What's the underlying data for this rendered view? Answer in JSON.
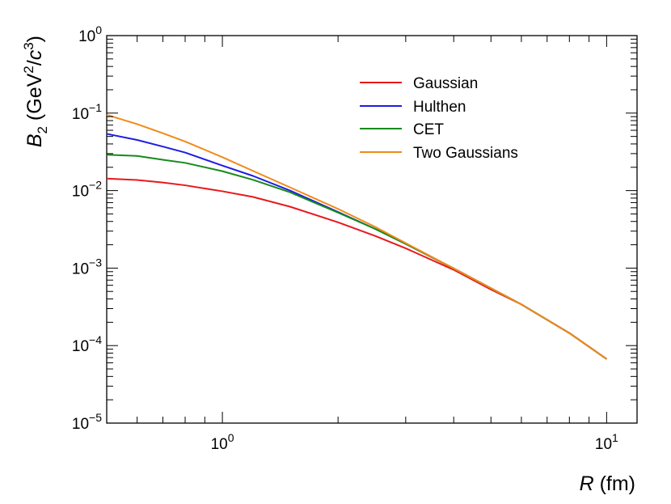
{
  "chart_data": {
    "type": "line",
    "scale": {
      "x": "log",
      "y": "log"
    },
    "xlim": [
      0.5,
      12.0
    ],
    "ylim": [
      1e-05,
      1.0
    ],
    "xlabel": {
      "var": "R",
      "unit": " (fm)"
    },
    "ylabel": {
      "var": "B",
      "sub": "2",
      "open": " (GeV",
      "sup1": "2",
      "mid": "/",
      "cvar": "c",
      "sup2": "3",
      "close": ")"
    },
    "x_ticks": [
      {
        "value": 1,
        "base": "10",
        "exp": "0"
      },
      {
        "value": 10,
        "base": "10",
        "exp": "1"
      }
    ],
    "y_ticks": [
      {
        "value": 1.0,
        "base": "10",
        "exp": "0"
      },
      {
        "value": 0.1,
        "base": "10",
        "exp": "−1"
      },
      {
        "value": 0.01,
        "base": "10",
        "exp": "−2"
      },
      {
        "value": 0.001,
        "base": "10",
        "exp": "−3"
      },
      {
        "value": 0.0001,
        "base": "10",
        "exp": "−4"
      },
      {
        "value": 1e-05,
        "base": "10",
        "exp": "−5"
      }
    ],
    "legend_position": "top-right",
    "series": [
      {
        "name": "Gaussian",
        "color": "#e8191c",
        "points": [
          [
            0.5,
            0.0143
          ],
          [
            0.6,
            0.0137
          ],
          [
            0.7,
            0.0127
          ],
          [
            0.8,
            0.0117
          ],
          [
            1.0,
            0.0098
          ],
          [
            1.2,
            0.0083
          ],
          [
            1.5,
            0.0062
          ],
          [
            2.0,
            0.0039
          ],
          [
            2.5,
            0.0026
          ],
          [
            3.0,
            0.0018
          ],
          [
            4.0,
            0.00095
          ],
          [
            5.0,
            0.00053
          ],
          [
            6.0,
            0.00034
          ],
          [
            8.0,
            0.000145
          ],
          [
            10.0,
            6.7e-05
          ]
        ]
      },
      {
        "name": "Hulthen",
        "color": "#1d1de3",
        "points": [
          [
            0.5,
            0.054
          ],
          [
            0.6,
            0.045
          ],
          [
            0.7,
            0.037
          ],
          [
            0.8,
            0.031
          ],
          [
            1.0,
            0.021
          ],
          [
            1.2,
            0.0155
          ],
          [
            1.5,
            0.01
          ],
          [
            2.0,
            0.0053
          ],
          [
            2.5,
            0.0032
          ],
          [
            3.0,
            0.00205
          ],
          [
            4.0,
            0.00099
          ],
          [
            5.0,
            0.00055
          ],
          [
            6.0,
            0.00034
          ],
          [
            8.0,
            0.000145
          ],
          [
            10.0,
            6.7e-05
          ]
        ]
      },
      {
        "name": "CET",
        "color": "#178a1a",
        "points": [
          [
            0.5,
            0.029
          ],
          [
            0.6,
            0.028
          ],
          [
            0.7,
            0.025
          ],
          [
            0.8,
            0.0228
          ],
          [
            1.0,
            0.0178
          ],
          [
            1.2,
            0.0138
          ],
          [
            1.5,
            0.0095
          ],
          [
            2.0,
            0.0052
          ],
          [
            2.5,
            0.0032
          ],
          [
            3.0,
            0.00205
          ],
          [
            4.0,
            0.00099
          ],
          [
            5.0,
            0.00055
          ],
          [
            6.0,
            0.00034
          ],
          [
            8.0,
            0.000145
          ],
          [
            10.0,
            6.7e-05
          ]
        ]
      },
      {
        "name": "Two Gaussians",
        "color": "#f18a18",
        "points": [
          [
            0.5,
            0.095
          ],
          [
            0.6,
            0.072
          ],
          [
            0.7,
            0.055
          ],
          [
            0.8,
            0.043
          ],
          [
            1.0,
            0.027
          ],
          [
            1.2,
            0.018
          ],
          [
            1.5,
            0.011
          ],
          [
            2.0,
            0.0058
          ],
          [
            2.5,
            0.0034
          ],
          [
            3.0,
            0.0021
          ],
          [
            4.0,
            0.00099
          ],
          [
            5.0,
            0.00055
          ],
          [
            6.0,
            0.00034
          ],
          [
            8.0,
            0.000145
          ],
          [
            10.0,
            6.7e-05
          ]
        ]
      }
    ]
  }
}
